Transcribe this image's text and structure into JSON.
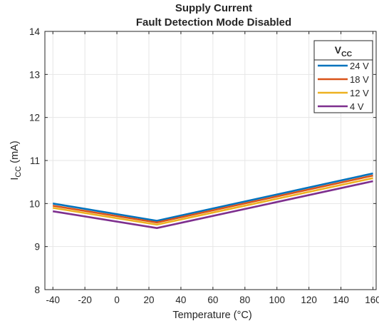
{
  "chart_data": {
    "type": "line",
    "title": "Supply Current",
    "subtitle": "Fault Detection Mode Disabled",
    "xlabel": "Temperature (°C)",
    "ylabel": {
      "main": "I",
      "sub": "CC",
      "rest": " (mA)"
    },
    "xlim": [
      -45,
      162
    ],
    "ylim": [
      8,
      14
    ],
    "xticks": [
      "-40",
      "-20",
      "0",
      "20",
      "40",
      "60",
      "80",
      "100",
      "120",
      "140",
      "160"
    ],
    "xtick_values": [
      -40,
      -20,
      0,
      20,
      40,
      60,
      80,
      100,
      120,
      140,
      160
    ],
    "yticks": [
      "8",
      "9",
      "10",
      "11",
      "12",
      "13",
      "14"
    ],
    "ytick_values": [
      8,
      9,
      10,
      11,
      12,
      13,
      14
    ],
    "grid": true,
    "legend_title": {
      "main": "V",
      "sub": "CC"
    },
    "legend_position": "top-right",
    "x": [
      -40,
      25,
      160
    ],
    "series": [
      {
        "name": "24 V",
        "color": "#0072BD",
        "values": [
          10.0,
          9.6,
          10.7
        ]
      },
      {
        "name": "18 V",
        "color": "#D95319",
        "values": [
          9.95,
          9.56,
          10.65
        ]
      },
      {
        "name": "12 V",
        "color": "#EDB120",
        "values": [
          9.9,
          9.51,
          10.59
        ]
      },
      {
        "name": "4 V",
        "color": "#7E2F8E",
        "values": [
          9.82,
          9.43,
          10.52
        ]
      }
    ]
  }
}
